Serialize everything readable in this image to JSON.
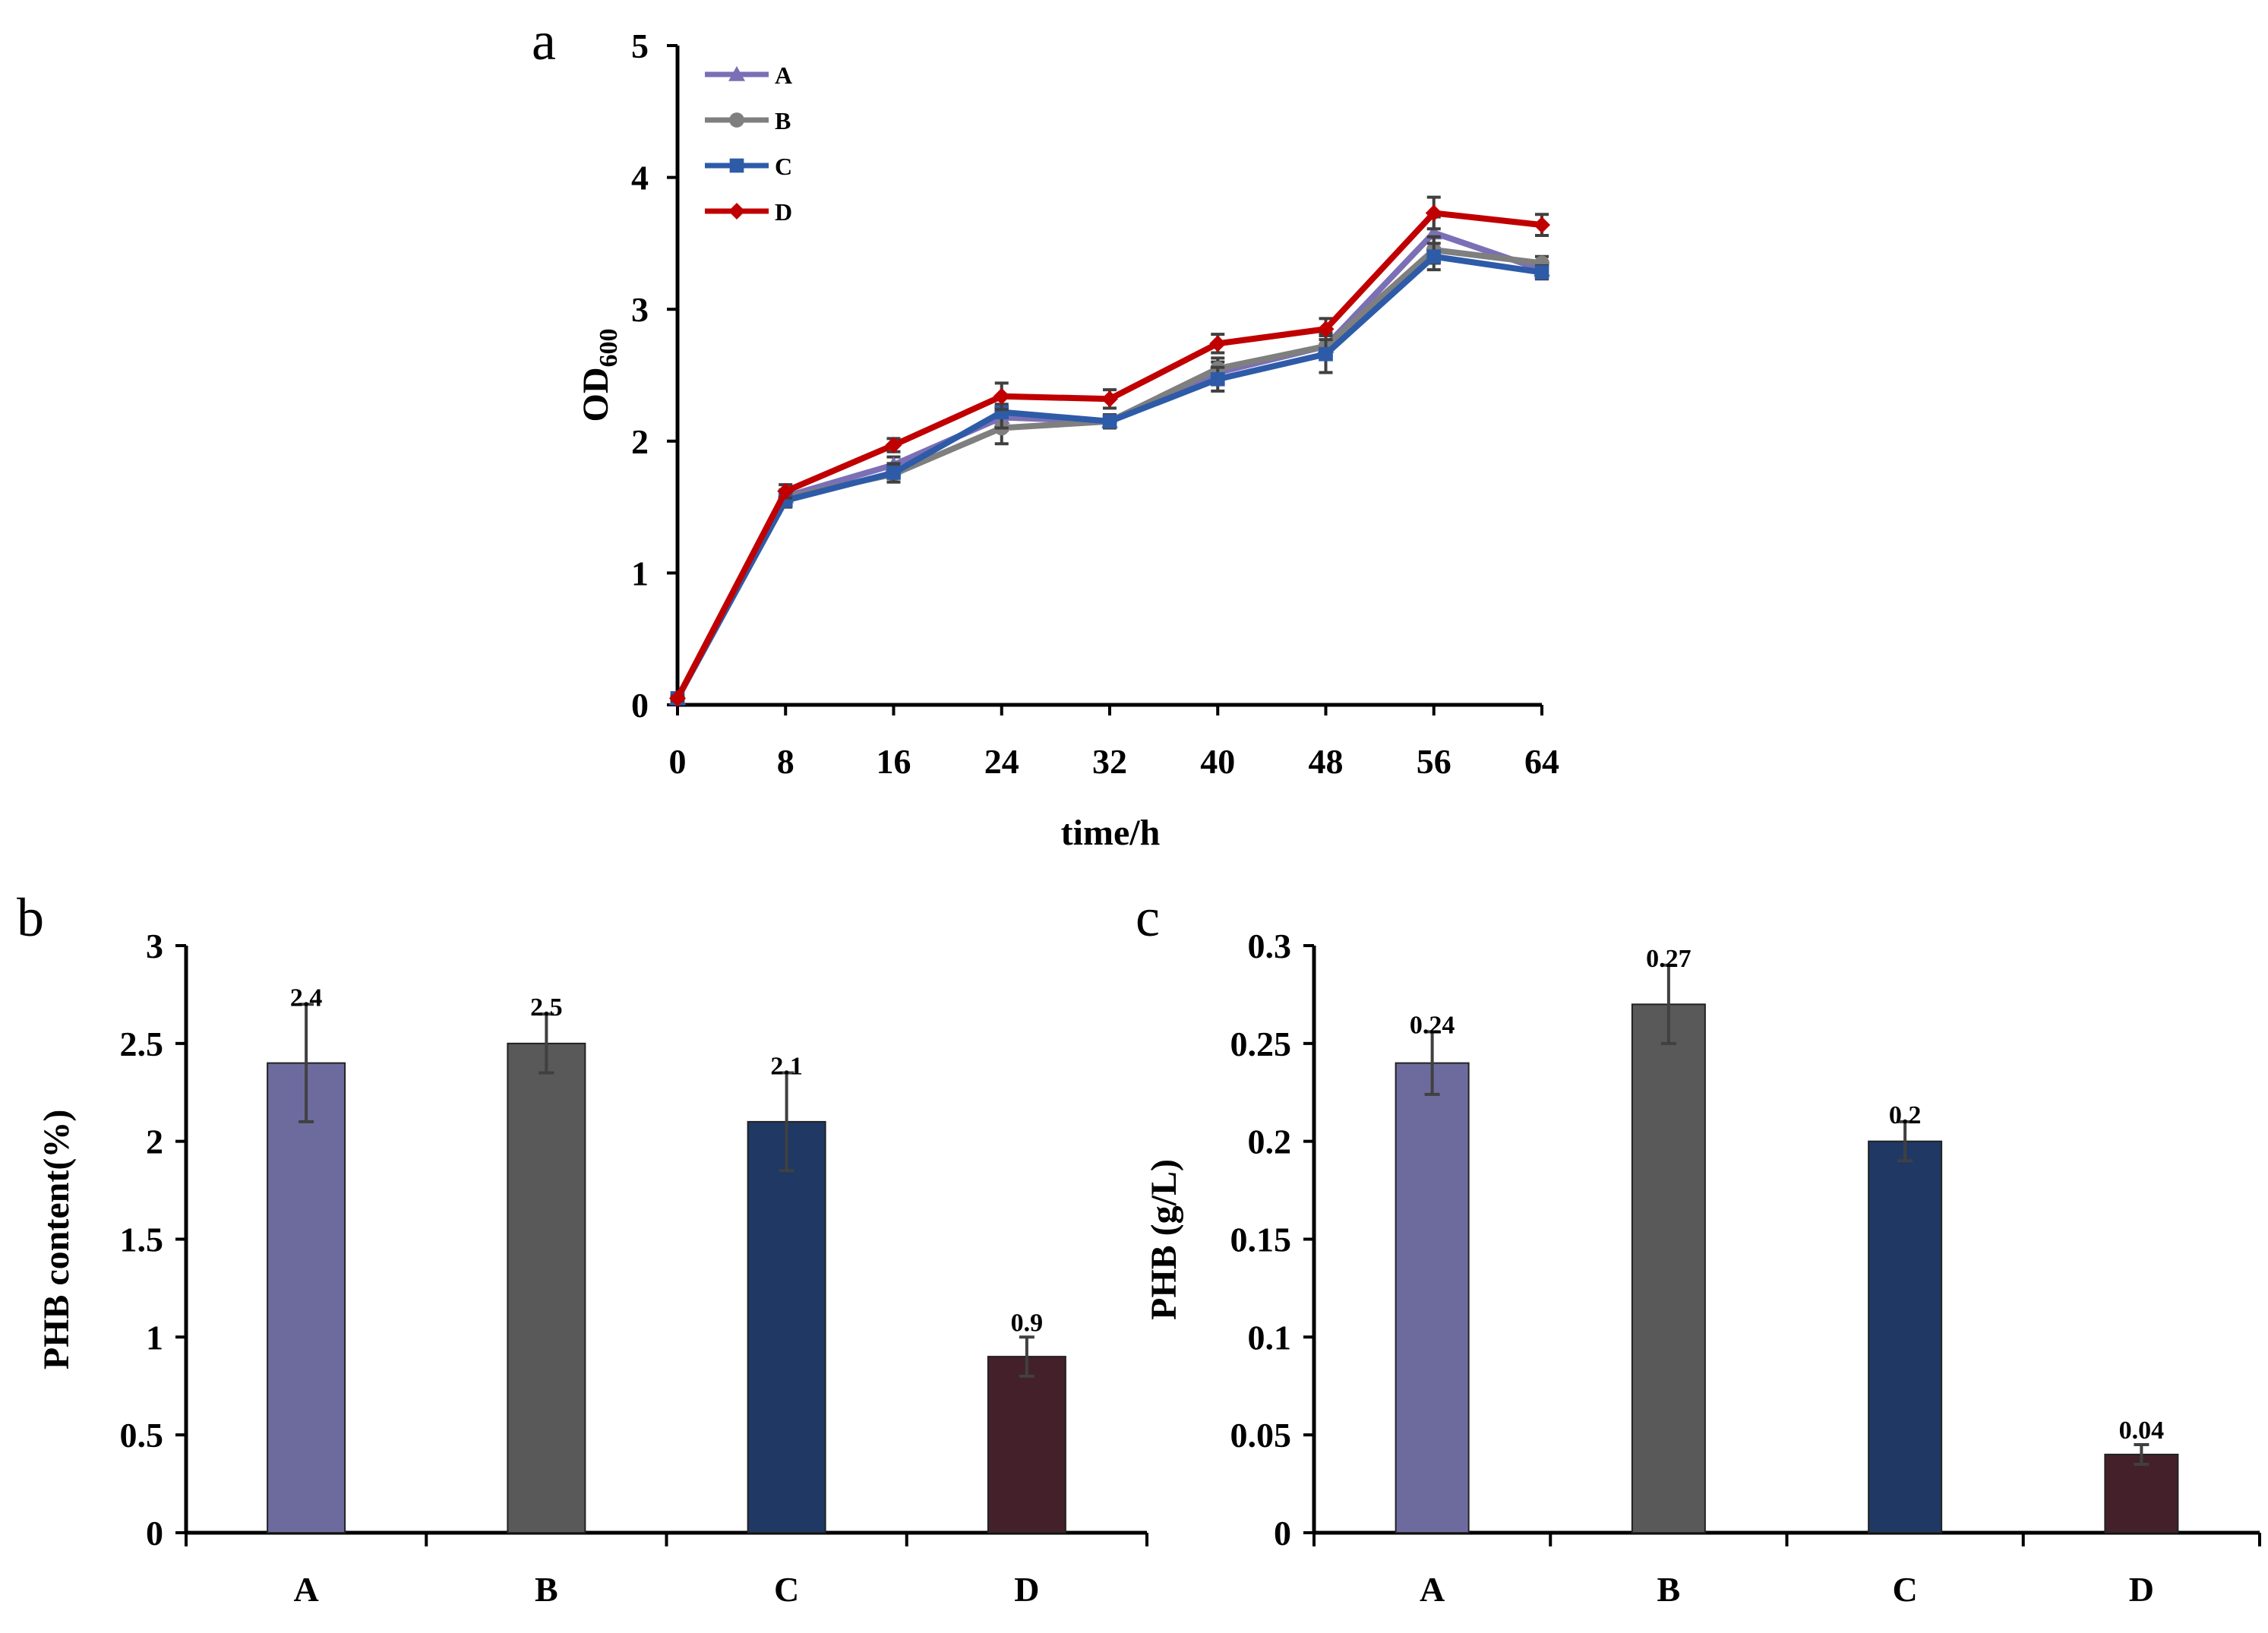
{
  "chart_data": [
    {
      "id": "a",
      "type": "line",
      "panel_label": "a",
      "title": "",
      "xlabel": "time/h",
      "ylabel": "OD600",
      "ylabel_main": "OD",
      "ylabel_sub": "600",
      "x": [
        0,
        8,
        16,
        24,
        32,
        40,
        48,
        56,
        64
      ],
      "xlim": [
        0,
        64
      ],
      "ylim": [
        0,
        5
      ],
      "xticks": [
        0,
        8,
        16,
        24,
        32,
        40,
        48,
        56,
        64
      ],
      "yticks": [
        0,
        1,
        2,
        3,
        4,
        5
      ],
      "grid": false,
      "legend_position": "top-left",
      "series": [
        {
          "name": "A",
          "color": "#7b6fb6",
          "marker": "triangle",
          "values": [
            0.05,
            1.58,
            1.82,
            2.18,
            2.15,
            2.52,
            2.72,
            3.58,
            3.3
          ],
          "errors": [
            0.02,
            0.05,
            0.06,
            0.1,
            0.05,
            0.08,
            0.1,
            0.12,
            0.05
          ]
        },
        {
          "name": "B",
          "color": "#7f7f7f",
          "marker": "circle",
          "values": [
            0.05,
            1.57,
            1.75,
            2.1,
            2.15,
            2.55,
            2.72,
            3.45,
            3.35
          ],
          "errors": [
            0.02,
            0.05,
            0.06,
            0.12,
            0.05,
            0.08,
            0.08,
            0.1,
            0.05
          ]
        },
        {
          "name": "C",
          "color": "#2e5ba8",
          "marker": "square",
          "values": [
            0.05,
            1.55,
            1.76,
            2.22,
            2.15,
            2.47,
            2.66,
            3.4,
            3.28
          ],
          "errors": [
            0.02,
            0.05,
            0.07,
            0.12,
            0.05,
            0.09,
            0.14,
            0.1,
            0.05
          ]
        },
        {
          "name": "D",
          "color": "#c00000",
          "marker": "diamond",
          "values": [
            0.05,
            1.62,
            1.97,
            2.34,
            2.32,
            2.74,
            2.85,
            3.73,
            3.64
          ],
          "errors": [
            0.02,
            0.05,
            0.05,
            0.1,
            0.07,
            0.07,
            0.08,
            0.12,
            0.08
          ]
        }
      ]
    },
    {
      "id": "b",
      "type": "bar",
      "panel_label": "b",
      "title": "",
      "xlabel": "",
      "ylabel": "PHB content(%)",
      "categories": [
        "A",
        "B",
        "C",
        "D"
      ],
      "values": [
        2.4,
        2.5,
        2.1,
        0.9
      ],
      "value_labels": [
        "2.4",
        "2.5",
        "2.1",
        "0.9"
      ],
      "errors": [
        0.3,
        0.15,
        0.25,
        0.1
      ],
      "colors": [
        "#6d6b9e",
        "#595959",
        "#1f3864",
        "#43202a"
      ],
      "ylim": [
        0,
        3
      ],
      "yticks": [
        0,
        0.5,
        1,
        1.5,
        2,
        2.5,
        3
      ],
      "ytick_labels": [
        "0",
        "0.5",
        "1",
        "1.5",
        "2",
        "2.5",
        "3"
      ],
      "grid": false
    },
    {
      "id": "c",
      "type": "bar",
      "panel_label": "c",
      "title": "",
      "xlabel": "",
      "ylabel": "PHB (g/L)",
      "categories": [
        "A",
        "B",
        "C",
        "D"
      ],
      "values": [
        0.24,
        0.27,
        0.2,
        0.04
      ],
      "value_labels": [
        "0.24",
        "0.27",
        "0.2",
        "0.04"
      ],
      "errors": [
        0.016,
        0.02,
        0.01,
        0.005
      ],
      "colors": [
        "#6d6b9e",
        "#595959",
        "#1f3864",
        "#43202a"
      ],
      "ylim": [
        0,
        0.3
      ],
      "yticks": [
        0,
        0.05,
        0.1,
        0.15,
        0.2,
        0.25,
        0.3
      ],
      "ytick_labels": [
        "0",
        "0.05",
        "0.1",
        "0.15",
        "0.2",
        "0.25",
        "0.3"
      ],
      "grid": false
    }
  ]
}
